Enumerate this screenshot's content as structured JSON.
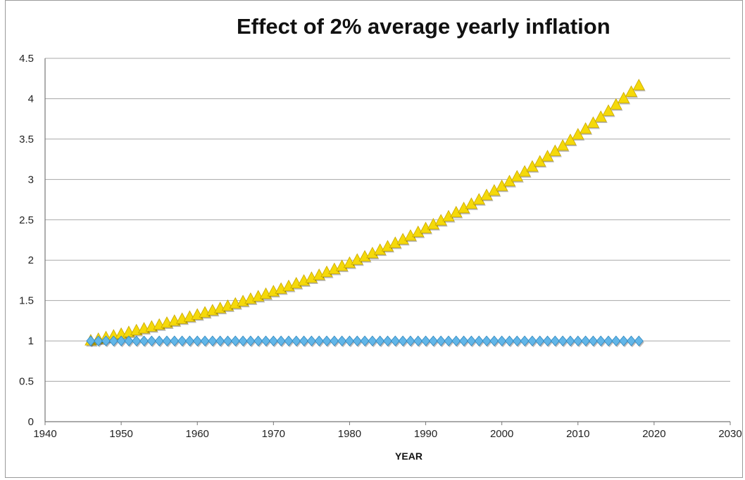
{
  "chart_data": {
    "type": "scatter",
    "title": "Effect of 2% average yearly inflation",
    "xlabel": "YEAR",
    "ylabel": "",
    "xlim": [
      1940,
      2030
    ],
    "ylim": [
      0,
      4.5
    ],
    "xticks": [
      1940,
      1950,
      1960,
      1970,
      1980,
      1990,
      2000,
      2010,
      2020,
      2030
    ],
    "yticks": [
      0,
      0.5,
      1,
      1.5,
      2,
      2.5,
      3,
      3.5,
      4,
      4.5
    ],
    "ytick_labels": [
      "0",
      "0.5",
      "1",
      "1.5",
      "2",
      "2.5",
      "3",
      "3.5",
      "4",
      "4.5"
    ],
    "grid": "horizontal",
    "legend": "none",
    "x_start": 1946,
    "x_end": 2018,
    "series": [
      {
        "marker": "triangle",
        "color": "#f5d90a",
        "stroke": "#c9a800",
        "growth_rate": 0.02,
        "start_value": 1.0
      },
      {
        "marker": "diamond",
        "color": "#62b6e8",
        "stroke": "#2f86bd",
        "growth_rate": 0,
        "start_value": 1.0
      }
    ]
  }
}
